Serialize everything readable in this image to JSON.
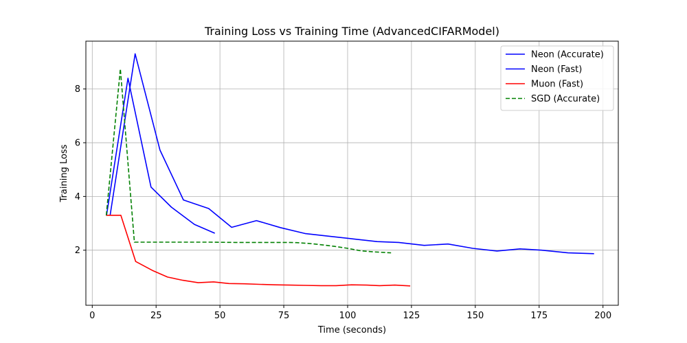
{
  "chart_data": {
    "type": "line",
    "title": "Training Loss vs Training Time (AdvancedCIFARModel)",
    "xlabel": "Time (seconds)",
    "ylabel": "Training Loss",
    "xlim": [
      -2.5,
      206
    ],
    "ylim": [
      -0.05,
      9.78
    ],
    "xticks": [
      0,
      25,
      50,
      75,
      100,
      125,
      150,
      175,
      200
    ],
    "yticks": [
      2,
      4,
      6,
      8
    ],
    "grid": true,
    "legend_position": "top-right",
    "series": [
      {
        "name": "Neon (Accurate)",
        "color": "#0000ff",
        "dash": "solid",
        "x": [
          7,
          16.8,
          26.5,
          35.7,
          45.6,
          54.6,
          64.3,
          73.7,
          83.3,
          92.6,
          102.2,
          111.6,
          120,
          130,
          139.3,
          149,
          158.5,
          167.5,
          176,
          186.3,
          196.5
        ],
        "y": [
          3.3,
          9.31,
          5.73,
          3.87,
          3.55,
          2.85,
          3.1,
          2.84,
          2.62,
          2.52,
          2.42,
          2.32,
          2.29,
          2.18,
          2.23,
          2.07,
          1.97,
          2.05,
          2.0,
          1.9,
          1.87
        ]
      },
      {
        "name": "Neon (Fast)",
        "color": "#0000ff",
        "dash": "solid",
        "x": [
          5.6,
          14,
          23,
          31,
          40,
          48
        ],
        "y": [
          3.3,
          8.4,
          4.35,
          3.6,
          2.96,
          2.63
        ]
      },
      {
        "name": "Muon (Fast)",
        "color": "#ff0000",
        "dash": "solid",
        "x": [
          5.4,
          11.2,
          17,
          23.5,
          29.5,
          35.5,
          41.5,
          47.5,
          53.5,
          59.5,
          65.5,
          71.5,
          77.5,
          83.5,
          89.5,
          95.5,
          101.5,
          107.5,
          112.5,
          118.5,
          124.5
        ],
        "y": [
          3.3,
          3.3,
          1.58,
          1.25,
          1.0,
          0.88,
          0.79,
          0.82,
          0.76,
          0.75,
          0.73,
          0.71,
          0.7,
          0.69,
          0.68,
          0.68,
          0.71,
          0.7,
          0.68,
          0.7,
          0.67
        ]
      },
      {
        "name": "SGD (Accurate)",
        "color": "#008000",
        "dash": "dashed",
        "x": [
          5.5,
          11,
          16.5,
          26,
          36,
          46,
          56,
          66,
          76,
          80,
          85,
          90,
          95,
          100,
          105,
          110,
          117
        ],
        "y": [
          3.3,
          8.75,
          2.3,
          2.3,
          2.3,
          2.3,
          2.29,
          2.29,
          2.29,
          2.28,
          2.25,
          2.2,
          2.14,
          2.07,
          1.98,
          1.94,
          1.9
        ]
      }
    ]
  }
}
